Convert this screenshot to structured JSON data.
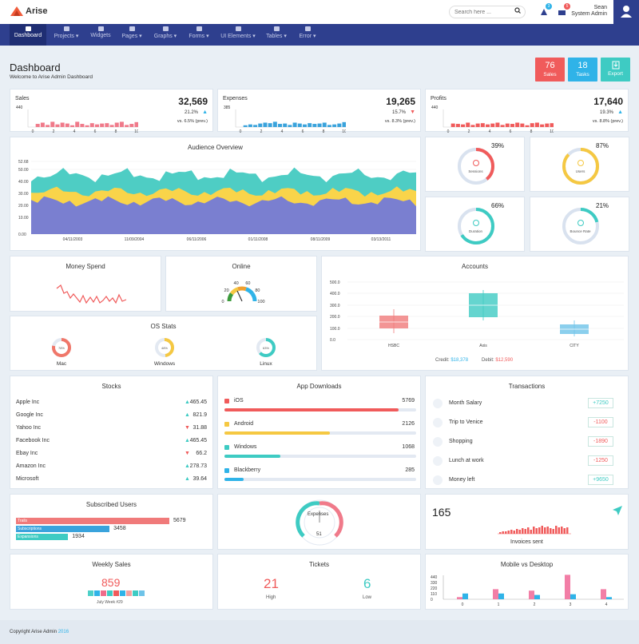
{
  "brand": {
    "name": "Arise"
  },
  "search": {
    "placeholder": "Search here ..."
  },
  "badges": {
    "notifications": "3",
    "messages": "5"
  },
  "user": {
    "name": "Sean",
    "role": "System Admin"
  },
  "nav": [
    {
      "label": "Dashboard"
    },
    {
      "label": "Projects ▾"
    },
    {
      "label": "Widgets"
    },
    {
      "label": "Pages ▾"
    },
    {
      "label": "Graphs ▾"
    },
    {
      "label": "Forms ▾"
    },
    {
      "label": "UI Elements ▾"
    },
    {
      "label": "Tables ▾"
    },
    {
      "label": "Error ▾"
    }
  ],
  "page": {
    "title": "Dashboard",
    "subtitle": "Welcome to Arise Admin Dashboard"
  },
  "tiles": [
    {
      "value": "76",
      "label": "Sales",
      "color": "#f05b5b"
    },
    {
      "value": "18",
      "label": "Tasks",
      "color": "#2fb3e8"
    },
    {
      "value": "",
      "label": "Export",
      "color": "#3ecbc3"
    }
  ],
  "summary": [
    {
      "title": "Sales",
      "value": "32,569",
      "pct": "21.2%",
      "trend": "up",
      "prev": "vs. 6.5% (prev.)",
      "ymax": "440",
      "ticks": [
        "0",
        "2",
        "4",
        "6",
        "8",
        "10"
      ],
      "color": "#f07a8a",
      "bars": [
        0,
        0.18,
        0.25,
        0.12,
        0.3,
        0.15,
        0.25,
        0.2,
        0.1,
        0.3,
        0.18,
        0.1,
        0.22,
        0.15,
        0.2,
        0.22,
        0.12,
        0.25,
        0.3,
        0.12,
        0.18,
        0.28
      ]
    },
    {
      "title": "Expenses",
      "value": "19,265",
      "pct": "15.7%",
      "trend": "down",
      "prev": "vs. 8.3% (prev.)",
      "ymax": "385",
      "ticks": [
        "0",
        "2",
        "4",
        "6",
        "8",
        "10"
      ],
      "color": "#3aa3dc",
      "bars": [
        0,
        0.1,
        0.15,
        0.12,
        0.2,
        0.25,
        0.22,
        0.3,
        0.18,
        0.2,
        0.12,
        0.25,
        0.2,
        0.15,
        0.22,
        0.18,
        0.2,
        0.25,
        0.12,
        0.15,
        0.2,
        0.28
      ]
    },
    {
      "title": "Profits",
      "value": "17,640",
      "pct": "19.3%",
      "trend": "up",
      "prev": "vs. 8.8% (prev.)",
      "ymax": "440",
      "ticks": [
        "0",
        "2",
        "4",
        "6",
        "8",
        "10"
      ],
      "color": "#f05b5b",
      "bars": [
        0,
        0.2,
        0.18,
        0.15,
        0.25,
        0.12,
        0.2,
        0.22,
        0.15,
        0.2,
        0.25,
        0.12,
        0.2,
        0.18,
        0.25,
        0.2,
        0.1,
        0.22,
        0.25,
        0.15,
        0.2,
        0.22
      ]
    }
  ],
  "audience": {
    "title": "Audience Overview",
    "yticks": [
      "52.68",
      "50.00",
      "40.00",
      "30.00",
      "20.00",
      "10.00",
      "0.00"
    ],
    "xticks": [
      "04/11/2003",
      "11/09/2004",
      "06/11/2006",
      "01/11/2008",
      "08/11/2009",
      "03/13/2011"
    ]
  },
  "gauges": [
    {
      "pct": "39%",
      "label": "Sessions",
      "color": "#f05b5b",
      "value": 0.39
    },
    {
      "pct": "87%",
      "label": "Users",
      "color": "#f5c842",
      "value": 0.87
    },
    {
      "pct": "66%",
      "label": "Duration",
      "color": "#3ecbc3",
      "value": 0.66
    },
    {
      "pct": "21%",
      "label": "Bounce Rate",
      "color": "#3ecbc3",
      "value": 0.21
    }
  ],
  "money": {
    "title": "Money Spend"
  },
  "online": {
    "title": "Online",
    "ticks": [
      "0",
      "20",
      "40",
      "60",
      "80",
      "100"
    ]
  },
  "os": {
    "title": "OS Stats",
    "items": [
      {
        "name": "Mac",
        "pct": "78%",
        "color": "#f0776a",
        "value": 0.78
      },
      {
        "name": "Windows",
        "pct": "48%",
        "color": "#f5c842",
        "value": 0.48
      },
      {
        "name": "Linux",
        "pct": "63%",
        "color": "#3ecbc3",
        "value": 0.63
      }
    ]
  },
  "accounts": {
    "title": "Accounts",
    "yticks": [
      "500.0",
      "400.0",
      "300.0",
      "200.0",
      "100.0",
      "0.0"
    ],
    "categories": [
      "HSBC",
      "Axis",
      "CITY"
    ],
    "credit_label": "Credit:",
    "credit": "$18,378",
    "debit_label": "Debit:",
    "debit": "$12,590"
  },
  "stocks": {
    "title": "Stocks",
    "rows": [
      {
        "name": "Apple Inc",
        "value": "465.45",
        "trend": "up"
      },
      {
        "name": "Google Inc",
        "value": "821.9",
        "trend": "up"
      },
      {
        "name": "Yahoo Inc",
        "value": "31.88",
        "trend": "down"
      },
      {
        "name": "Facebook Inc",
        "value": "465.45",
        "trend": "up"
      },
      {
        "name": "Ebay Inc",
        "value": "66.2",
        "trend": "down"
      },
      {
        "name": "Amazon Inc",
        "value": "278.73",
        "trend": "up"
      },
      {
        "name": "Microsoft",
        "value": "39.64",
        "trend": "up"
      }
    ]
  },
  "downloads": {
    "title": "App Downloads",
    "rows": [
      {
        "name": "iOS",
        "value": "5769",
        "color": "#f05b5b",
        "fill": 0.91
      },
      {
        "name": "Android",
        "value": "2126",
        "color": "#f5c842",
        "fill": 0.55
      },
      {
        "name": "Windows",
        "value": "1068",
        "color": "#3ecbc3",
        "fill": 0.29
      },
      {
        "name": "Blackberry",
        "value": "285",
        "color": "#2fb3e8",
        "fill": 0.1
      }
    ]
  },
  "transactions": {
    "title": "Transactions",
    "rows": [
      {
        "name": "Month Salary",
        "amount": "+7250",
        "color": "#3ecbc3"
      },
      {
        "name": "Trip to Venice",
        "amount": "-1100",
        "color": "#f05b5b"
      },
      {
        "name": "Shopping",
        "amount": "-1890",
        "color": "#f05b5b"
      },
      {
        "name": "Lunch at work",
        "amount": "-1250",
        "color": "#f05b5b"
      },
      {
        "name": "Money left",
        "amount": "+9650",
        "color": "#3ecbc3"
      }
    ]
  },
  "subscribed": {
    "title": "Subscribed Users",
    "rows": [
      {
        "name": "Trails",
        "value": "5679",
        "color": "#f07a7a",
        "fill": 1
      },
      {
        "name": "Subscriptions",
        "value": "3458",
        "color": "#3aa3dc",
        "fill": 0.61
      },
      {
        "name": "Expansions",
        "value": "1934",
        "color": "#3ecbc3",
        "fill": 0.34
      }
    ]
  },
  "expenses_gauge": {
    "label": "Expenses",
    "value": "51"
  },
  "invoices": {
    "value": "165",
    "label": "Invoices sent"
  },
  "weekly": {
    "title": "Weekly Sales",
    "value": "859",
    "sub": "July Week #29"
  },
  "tickets": {
    "title": "Tickets",
    "high": "21",
    "high_label": "High",
    "low": "6",
    "low_label": "Low"
  },
  "mobile": {
    "title": "Mobile vs Desktop",
    "yticks": [
      "440",
      "330",
      "220",
      "110",
      "0"
    ],
    "xticks": [
      "0",
      "1",
      "2",
      "3",
      "4"
    ]
  },
  "footer": {
    "text": "Copyright Arise Admin",
    "year": "2016"
  }
}
